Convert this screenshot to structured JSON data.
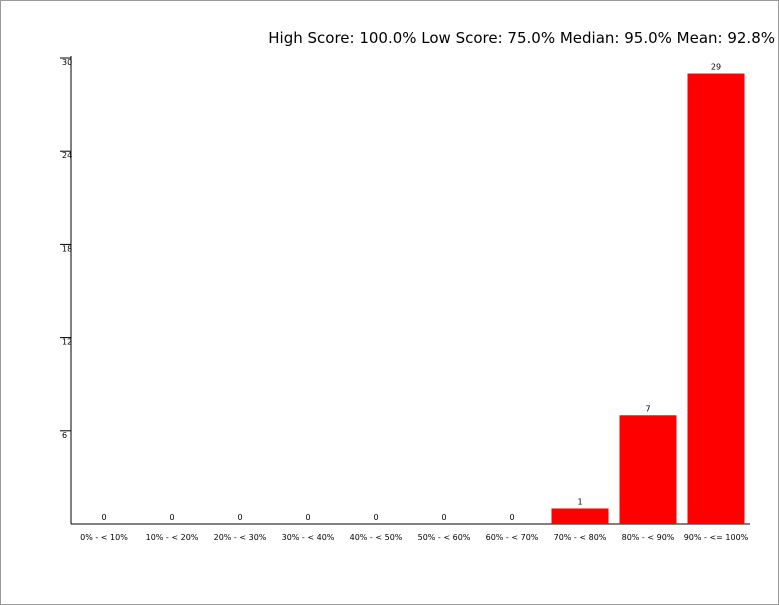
{
  "chart_data": {
    "type": "bar",
    "title": "High Score: 100.0%  Low Score: 75.0%  Median: 95.0%  Mean: 92.8%",
    "categories": [
      "0% - < 10%",
      "10% - < 20%",
      "20% - < 30%",
      "30% - < 40%",
      "40% - < 50%",
      "50% - < 60%",
      "60% - < 70%",
      "70% - < 80%",
      "80% - < 90%",
      "90% - <= 100%"
    ],
    "values": [
      0,
      0,
      0,
      0,
      0,
      0,
      0,
      1,
      7,
      29
    ],
    "color": "#ff0000",
    "ylim": [
      0,
      30
    ],
    "yticks": [
      6,
      12,
      18,
      24,
      30
    ],
    "grid": false
  }
}
